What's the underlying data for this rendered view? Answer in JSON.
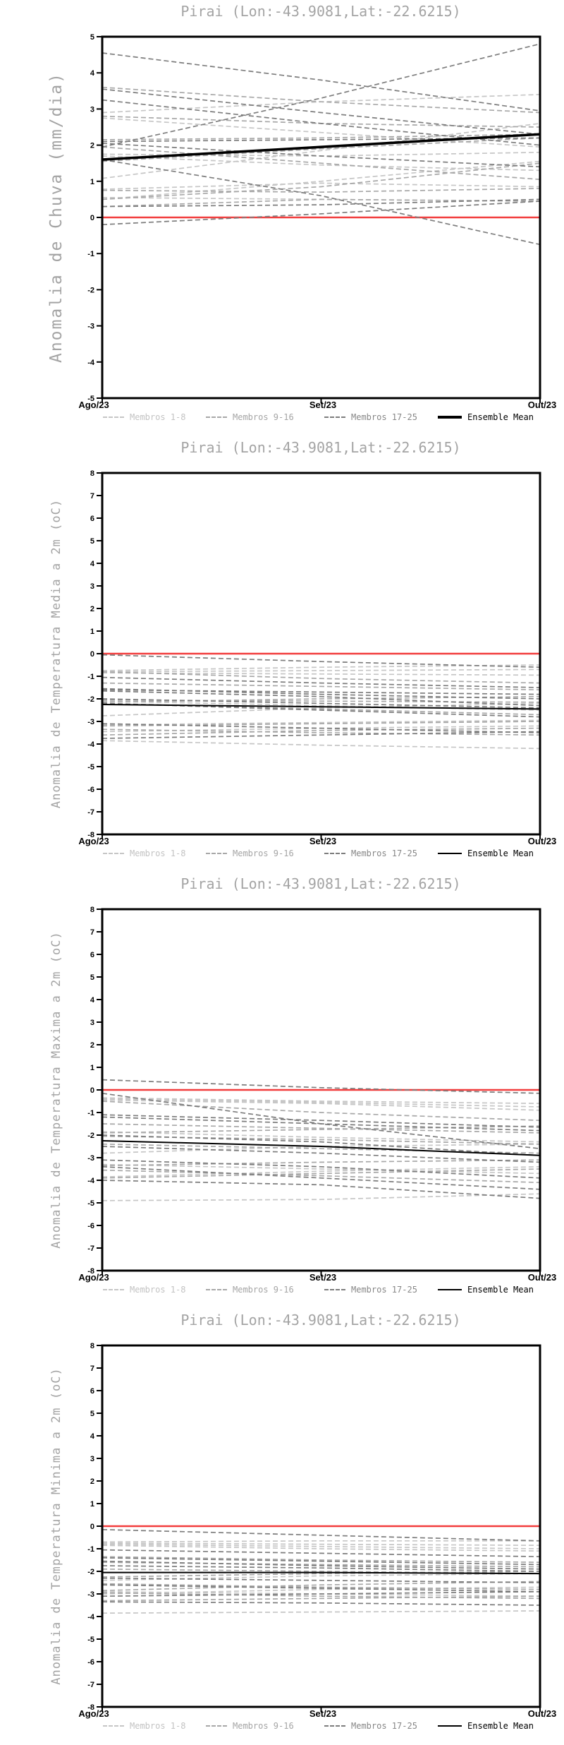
{
  "colors": {
    "background": "#ffffff",
    "title_text": "#a4a4a4",
    "axis_frame": "#000000",
    "tick_text": "#000000",
    "zero_line": "#f23d3d",
    "members_1_8": "#c6c6c6",
    "members_9_16": "#a8a8a8",
    "members_17_25": "#7d7d7d",
    "ensemble_mean": "#000000"
  },
  "chart_data": [
    {
      "type": "line",
      "title": "Pirai (Lon:-43.9081,Lat:-22.6215)",
      "ylabel": "Anomalia de Chuva (mm/dia)",
      "xlabel": "",
      "ylim": [
        -5,
        5
      ],
      "yticks": [
        5,
        4,
        3,
        2,
        1,
        0,
        -1,
        -2,
        -3,
        -4,
        -5
      ],
      "categories": [
        "Ago/23",
        "Set/23",
        "Out/23"
      ],
      "legend": [
        "Membros 1-8",
        "Membros 9-16",
        "Membros 17-25",
        "Ensemble Mean"
      ],
      "grid": false,
      "legend_position": "bottom",
      "zero_line_value": 0,
      "mean_thick": true,
      "members_1_8": [
        [
          2.75,
          2.35,
          1.95
        ],
        [
          1.75,
          1.7,
          1.8
        ],
        [
          1.7,
          1.45,
          1.3
        ],
        [
          1.08,
          1.85,
          2.6
        ],
        [
          0.78,
          0.95,
          0.85
        ],
        [
          0.55,
          0.5,
          0.45
        ],
        [
          0.5,
          1.0,
          1.55
        ],
        [
          2.9,
          3.2,
          3.4
        ]
      ],
      "members_9_16": [
        [
          3.6,
          3.2,
          2.9
        ],
        [
          2.15,
          2.2,
          2.3
        ],
        [
          1.95,
          1.5,
          1.05
        ],
        [
          1.55,
          1.9,
          2.2
        ],
        [
          0.75,
          0.7,
          0.8
        ],
        [
          0.5,
          0.85,
          1.5
        ],
        [
          0.3,
          0.5,
          0.45
        ],
        [
          2.8,
          2.6,
          2.5
        ]
      ],
      "members_17_25": [
        [
          4.55,
          3.8,
          2.95
        ],
        [
          3.55,
          2.9,
          2.3
        ],
        [
          1.95,
          3.3,
          4.8
        ],
        [
          3.25,
          2.6,
          2.0
        ],
        [
          2.1,
          2.15,
          2.2
        ],
        [
          2.05,
          1.7,
          1.4
        ],
        [
          0.3,
          0.35,
          0.5
        ],
        [
          -0.2,
          0.1,
          0.45
        ],
        [
          1.6,
          0.6,
          -0.75
        ]
      ],
      "ensemble_mean": [
        1.6,
        1.95,
        2.3
      ]
    },
    {
      "type": "line",
      "title": "Pirai (Lon:-43.9081,Lat:-22.6215)",
      "ylabel": "Anomalia de Temperatura Media a 2m (oC)",
      "xlabel": "",
      "ylim": [
        -8,
        8
      ],
      "yticks": [
        8,
        7,
        6,
        5,
        4,
        3,
        2,
        1,
        0,
        -1,
        -2,
        -3,
        -4,
        -5,
        -6,
        -7,
        -8
      ],
      "categories": [
        "Ago/23",
        "Set/23",
        "Out/23"
      ],
      "legend": [
        "Membros 1-8",
        "Membros 9-16",
        "Membros 17-25",
        "Ensemble Mean"
      ],
      "grid": false,
      "legend_position": "bottom",
      "zero_line_value": 0,
      "mean_thick": false,
      "members_1_8": [
        [
          -0.75,
          -0.6,
          -0.5
        ],
        [
          -0.8,
          -0.75,
          -0.7
        ],
        [
          -0.85,
          -0.9,
          -0.95
        ],
        [
          -2.75,
          -2.4,
          -2.2
        ],
        [
          -3.15,
          -3.05,
          -2.95
        ],
        [
          -3.45,
          -3.3,
          -3.2
        ],
        [
          -3.85,
          -4.05,
          -4.2
        ],
        [
          -2.1,
          -2.3,
          -2.5
        ]
      ],
      "members_9_16": [
        [
          -1.3,
          -1.45,
          -1.6
        ],
        [
          -2.05,
          -2.1,
          -2.15
        ],
        [
          -2.2,
          -2.45,
          -2.7
        ],
        [
          -3.2,
          -3.1,
          -3.0
        ],
        [
          -3.35,
          -3.5,
          -3.6
        ],
        [
          -3.6,
          -3.4,
          -3.3
        ],
        [
          -0.8,
          -1.1,
          -1.3
        ],
        [
          -2.15,
          -2.0,
          -1.9
        ]
      ],
      "members_17_25": [
        [
          -0.05,
          -0.35,
          -0.6
        ],
        [
          -1.05,
          -1.3,
          -1.5
        ],
        [
          -1.55,
          -1.8,
          -2.0
        ],
        [
          -1.6,
          -1.7,
          -1.8
        ],
        [
          -1.65,
          -1.9,
          -2.3
        ],
        [
          -2.0,
          -2.2,
          -2.4
        ],
        [
          -2.2,
          -2.5,
          -2.8
        ],
        [
          -3.1,
          -3.3,
          -3.5
        ],
        [
          -3.75,
          -3.6,
          -3.45
        ]
      ],
      "ensemble_mean": [
        -2.25,
        -2.35,
        -2.45
      ]
    },
    {
      "type": "line",
      "title": "Pirai (Lon:-43.9081,Lat:-22.6215)",
      "ylabel": "Anomalia de Temperatura Maxima a 2m (oC)",
      "xlabel": "",
      "ylim": [
        -8,
        8
      ],
      "yticks": [
        8,
        7,
        6,
        5,
        4,
        3,
        2,
        1,
        0,
        -1,
        -2,
        -3,
        -4,
        -5,
        -6,
        -7,
        -8
      ],
      "categories": [
        "Ago/23",
        "Set/23",
        "Out/23"
      ],
      "legend": [
        "Membros 1-8",
        "Membros 9-16",
        "Membros 17-25",
        "Ensemble Mean"
      ],
      "grid": false,
      "legend_position": "bottom",
      "zero_line_value": 0,
      "mean_thick": false,
      "members_1_8": [
        [
          -0.35,
          -0.5,
          -0.6
        ],
        [
          -0.4,
          -0.55,
          -0.75
        ],
        [
          -0.45,
          -0.6,
          -0.9
        ],
        [
          -1.85,
          -2.1,
          -2.3
        ],
        [
          -2.8,
          -2.5,
          -2.4
        ],
        [
          -3.3,
          -3.5,
          -3.7
        ],
        [
          -4.9,
          -4.85,
          -4.6
        ],
        [
          -3.85,
          -3.6,
          -3.4
        ]
      ],
      "members_9_16": [
        [
          -1.5,
          -1.7,
          -1.9
        ],
        [
          -1.9,
          -1.75,
          -1.6
        ],
        [
          -2.4,
          -2.6,
          -2.8
        ],
        [
          -3.35,
          -3.2,
          -3.1
        ],
        [
          -3.55,
          -3.8,
          -4.1
        ],
        [
          -3.9,
          -3.7,
          -3.5
        ],
        [
          -2.05,
          -2.2,
          -2.4
        ],
        [
          -0.5,
          -1.0,
          -1.35
        ]
      ],
      "members_17_25": [
        [
          0.45,
          0.1,
          -0.15
        ],
        [
          -0.15,
          -1.5,
          -2.6
        ],
        [
          -1.1,
          -1.35,
          -1.65
        ],
        [
          -1.2,
          -1.5,
          -1.8
        ],
        [
          -2.0,
          -2.3,
          -2.9
        ],
        [
          -2.5,
          -2.8,
          -3.2
        ],
        [
          -3.1,
          -3.4,
          -3.9
        ],
        [
          -3.4,
          -3.9,
          -4.4
        ],
        [
          -4.0,
          -4.2,
          -4.8
        ]
      ],
      "ensemble_mean": [
        -2.25,
        -2.5,
        -2.9
      ]
    },
    {
      "type": "line",
      "title": "Pirai (Lon:-43.9081,Lat:-22.6215)",
      "ylabel": "Anomalia de Temperatura Minima a 2m (oC)",
      "xlabel": "",
      "ylim": [
        -8,
        8
      ],
      "yticks": [
        8,
        7,
        6,
        5,
        4,
        3,
        2,
        1,
        0,
        -1,
        -2,
        -3,
        -4,
        -5,
        -6,
        -7,
        -8
      ],
      "categories": [
        "Ago/23",
        "Set/23",
        "Out/23"
      ],
      "legend": [
        "Membros 1-8",
        "Membros 9-16",
        "Membros 17-25",
        "Ensemble Mean"
      ],
      "grid": false,
      "legend_position": "bottom",
      "zero_line_value": 0,
      "mean_thick": false,
      "members_1_8": [
        [
          -0.7,
          -0.65,
          -0.65
        ],
        [
          -0.75,
          -0.8,
          -0.85
        ],
        [
          -0.8,
          -0.9,
          -1.0
        ],
        [
          -0.85,
          -1.0,
          -1.1
        ],
        [
          -2.4,
          -2.2,
          -2.1
        ],
        [
          -2.9,
          -3.0,
          -3.1
        ],
        [
          -3.85,
          -3.8,
          -3.75
        ],
        [
          -3.0,
          -2.8,
          -2.7
        ]
      ],
      "members_9_16": [
        [
          -1.35,
          -1.5,
          -1.6
        ],
        [
          -1.6,
          -1.7,
          -1.8
        ],
        [
          -2.25,
          -2.1,
          -2.0
        ],
        [
          -2.55,
          -2.7,
          -2.8
        ],
        [
          -2.95,
          -3.1,
          -3.2
        ],
        [
          -3.3,
          -3.2,
          -3.1
        ],
        [
          -1.9,
          -2.0,
          -2.1
        ],
        [
          -2.85,
          -2.6,
          -2.45
        ]
      ],
      "members_17_25": [
        [
          -0.15,
          -0.4,
          -0.65
        ],
        [
          -1.05,
          -1.2,
          -1.35
        ],
        [
          -1.4,
          -1.55,
          -1.7
        ],
        [
          -1.55,
          -1.75,
          -1.9
        ],
        [
          -1.75,
          -1.85,
          -2.0
        ],
        [
          -2.3,
          -2.4,
          -2.5
        ],
        [
          -2.6,
          -2.75,
          -2.9
        ],
        [
          -3.1,
          -3.0,
          -2.9
        ],
        [
          -3.35,
          -3.4,
          -3.5
        ]
      ],
      "ensemble_mean": [
        -2.05,
        -2.05,
        -2.1
      ]
    }
  ]
}
